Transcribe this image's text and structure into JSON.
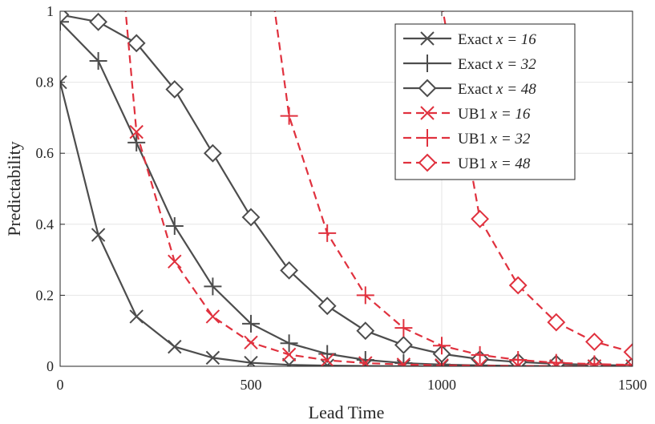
{
  "chart_data": {
    "type": "line",
    "xlabel": "Lead Time",
    "ylabel": "Predictability",
    "xlim": [
      0,
      1500
    ],
    "ylim": [
      0,
      1
    ],
    "xticks": [
      0,
      500,
      1000,
      1500
    ],
    "yticks": [
      0,
      0.2,
      0.4,
      0.6,
      0.8,
      1
    ],
    "xtick_labels": [
      "0",
      "500",
      "1000",
      "1500"
    ],
    "ytick_labels": [
      "0",
      "0.2",
      "0.4",
      "0.6",
      "0.8",
      "1"
    ],
    "grid": true,
    "legend_position": "top-right",
    "x": [
      0,
      100,
      200,
      300,
      400,
      500,
      600,
      700,
      800,
      900,
      1000,
      1100,
      1200,
      1300,
      1400,
      1500
    ],
    "series": [
      {
        "name": "Exact",
        "name_var": "x = 16",
        "color": "#4d4d4d",
        "marker": "x",
        "dashed": false,
        "values": [
          0.8,
          0.37,
          0.14,
          0.055,
          0.024,
          0.01,
          0.004,
          0.002,
          0.001,
          0.0005,
          0.0002,
          0.0001,
          0.0,
          0.0,
          0.0,
          0.0
        ]
      },
      {
        "name": "Exact",
        "name_var": "x = 32",
        "color": "#4d4d4d",
        "marker": "+",
        "dashed": false,
        "values": [
          0.97,
          0.86,
          0.63,
          0.395,
          0.225,
          0.12,
          0.065,
          0.035,
          0.018,
          0.009,
          0.005,
          0.0025,
          0.0012,
          0.0006,
          0.0003,
          0.0001
        ]
      },
      {
        "name": "Exact",
        "name_var": "x = 48",
        "color": "#4d4d4d",
        "marker": "diamond",
        "dashed": false,
        "values": [
          0.99,
          0.97,
          0.91,
          0.78,
          0.6,
          0.42,
          0.27,
          0.17,
          0.1,
          0.06,
          0.035,
          0.02,
          0.012,
          0.007,
          0.004,
          0.002
        ]
      },
      {
        "name": "UB1",
        "name_var": "x = 16",
        "color": "#e0313e",
        "marker": "x",
        "dashed": true,
        "start_x": 200,
        "clip_from": [
          {
            "x": 170,
            "y": 1.02
          }
        ],
        "values": [
          null,
          null,
          0.66,
          0.295,
          0.14,
          0.067,
          0.033,
          0.017,
          0.009,
          0.005,
          0.003,
          0.0015,
          0.001,
          0.0005,
          0.0003,
          0.0002
        ]
      },
      {
        "name": "UB1",
        "name_var": "x = 32",
        "color": "#e0313e",
        "marker": "+",
        "dashed": true,
        "clip_from": [
          {
            "x": 560,
            "y": 1.02
          }
        ],
        "values": [
          null,
          null,
          null,
          null,
          null,
          null,
          0.705,
          0.375,
          0.2,
          0.108,
          0.058,
          0.032,
          0.018,
          0.01,
          0.006,
          0.004
        ]
      },
      {
        "name": "UB1",
        "name_var": "x = 48",
        "color": "#e0313e",
        "marker": "diamond",
        "dashed": true,
        "clip_from": [
          {
            "x": 1000,
            "y": 1.02
          }
        ],
        "values": [
          null,
          null,
          null,
          null,
          null,
          null,
          null,
          null,
          null,
          null,
          null,
          0.415,
          0.228,
          0.124,
          0.069,
          0.04
        ]
      }
    ]
  }
}
